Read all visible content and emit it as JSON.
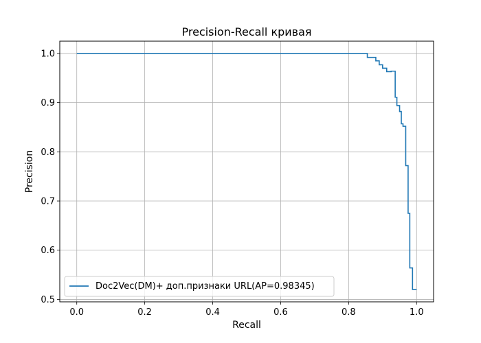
{
  "chart_data": {
    "type": "line",
    "title": "Precision-Recall кривая",
    "xlabel": "Recall",
    "ylabel": "Precision",
    "xlim": [
      -0.05,
      1.05
    ],
    "ylim": [
      0.495,
      1.025
    ],
    "xticks": [
      0.0,
      0.2,
      0.4,
      0.6,
      0.8,
      1.0
    ],
    "xtick_labels": [
      "0.0",
      "0.2",
      "0.4",
      "0.6",
      "0.8",
      "1.0"
    ],
    "yticks": [
      0.5,
      0.6,
      0.7,
      0.8,
      0.9,
      1.0
    ],
    "ytick_labels": [
      "0.5",
      "0.6",
      "0.7",
      "0.8",
      "0.9",
      "1.0"
    ],
    "grid": true,
    "legend_position": "lower-left",
    "series": [
      {
        "name": "Doc2Vec(DM)+ доп.признаки URL(AP=0.98345)",
        "color": "#1f77b4",
        "step": true,
        "points": [
          [
            0.0,
            1.0
          ],
          [
            0.855,
            1.0
          ],
          [
            0.855,
            0.992
          ],
          [
            0.88,
            0.992
          ],
          [
            0.88,
            0.985
          ],
          [
            0.89,
            0.985
          ],
          [
            0.89,
            0.977
          ],
          [
            0.9,
            0.977
          ],
          [
            0.9,
            0.97
          ],
          [
            0.912,
            0.97
          ],
          [
            0.912,
            0.963
          ],
          [
            0.925,
            0.963
          ],
          [
            0.925,
            0.964
          ],
          [
            0.937,
            0.964
          ],
          [
            0.937,
            0.911
          ],
          [
            0.942,
            0.911
          ],
          [
            0.942,
            0.894
          ],
          [
            0.95,
            0.894
          ],
          [
            0.95,
            0.882
          ],
          [
            0.955,
            0.882
          ],
          [
            0.955,
            0.857
          ],
          [
            0.96,
            0.857
          ],
          [
            0.96,
            0.852
          ],
          [
            0.968,
            0.852
          ],
          [
            0.968,
            0.772
          ],
          [
            0.975,
            0.772
          ],
          [
            0.975,
            0.675
          ],
          [
            0.98,
            0.675
          ],
          [
            0.98,
            0.564
          ],
          [
            0.988,
            0.564
          ],
          [
            0.988,
            0.52
          ],
          [
            1.0,
            0.52
          ]
        ]
      }
    ]
  }
}
